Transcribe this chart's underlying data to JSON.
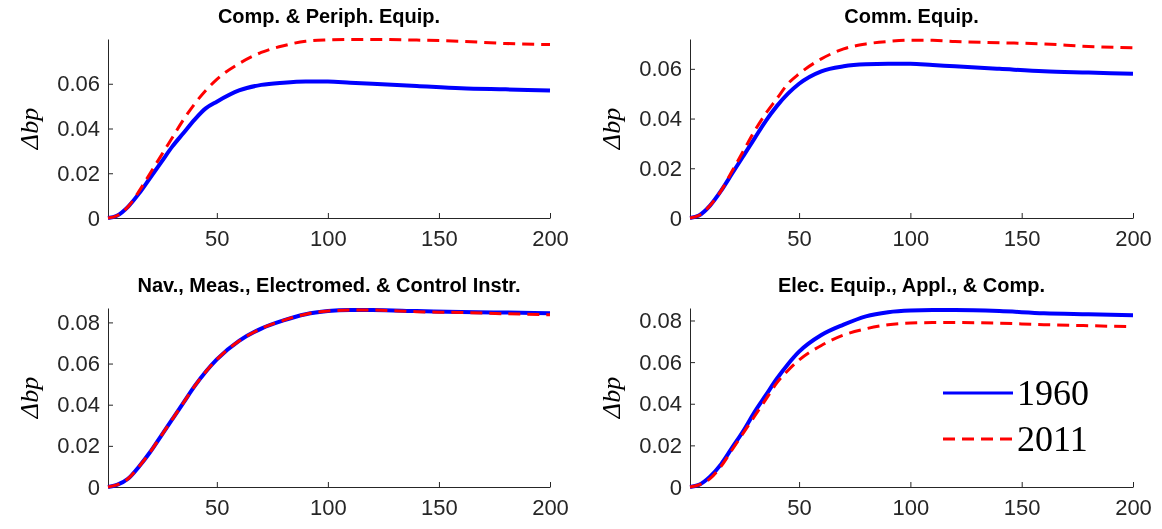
{
  "chart_data": [
    {
      "type": "line",
      "title": "Comp. & Periph. Equip.",
      "ylabel": "Δbp",
      "x": [
        1,
        5,
        10,
        15,
        20,
        25,
        30,
        35,
        40,
        45,
        50,
        60,
        70,
        80,
        90,
        100,
        110,
        120,
        140,
        160,
        180,
        200
      ],
      "xlim": [
        1,
        200
      ],
      "xticks": [
        50,
        100,
        150,
        200
      ],
      "ylim": [
        0,
        0.08
      ],
      "yticks": [
        0,
        0.02,
        0.04,
        0.06
      ],
      "legend": false,
      "series": [
        {
          "color": "#0000ff",
          "line_style": "solid",
          "values": [
            0,
            0.001,
            0.005,
            0.011,
            0.018,
            0.025,
            0.032,
            0.038,
            0.044,
            0.049,
            0.052,
            0.057,
            0.0595,
            0.0605,
            0.061,
            0.061,
            0.0605,
            0.06,
            0.059,
            0.058,
            0.0575,
            0.057
          ]
        },
        {
          "color": "#ff0000",
          "line_style": "dashed",
          "values": [
            0,
            0.001,
            0.005,
            0.012,
            0.02,
            0.028,
            0.036,
            0.044,
            0.051,
            0.057,
            0.062,
            0.069,
            0.074,
            0.077,
            0.079,
            0.0796,
            0.0798,
            0.0798,
            0.0795,
            0.079,
            0.078,
            0.0775
          ]
        }
      ]
    },
    {
      "type": "line",
      "title": "Comm. Equip.",
      "ylabel": "Δbp",
      "x": [
        1,
        5,
        10,
        15,
        20,
        25,
        30,
        35,
        40,
        45,
        50,
        60,
        70,
        80,
        90,
        100,
        110,
        120,
        140,
        160,
        180,
        200
      ],
      "xlim": [
        1,
        200
      ],
      "xticks": [
        50,
        100,
        150,
        200
      ],
      "ylim": [
        0,
        0.072
      ],
      "yticks": [
        0,
        0.02,
        0.04,
        0.06
      ],
      "legend": false,
      "series": [
        {
          "color": "#0000ff",
          "line_style": "solid",
          "values": [
            0,
            0.001,
            0.005,
            0.011,
            0.018,
            0.025,
            0.032,
            0.039,
            0.045,
            0.05,
            0.054,
            0.059,
            0.061,
            0.0618,
            0.062,
            0.062,
            0.0615,
            0.061,
            0.06,
            0.059,
            0.0585,
            0.058
          ]
        },
        {
          "color": "#ff0000",
          "line_style": "dashed",
          "values": [
            0,
            0.001,
            0.005,
            0.011,
            0.019,
            0.027,
            0.035,
            0.042,
            0.048,
            0.054,
            0.058,
            0.064,
            0.068,
            0.07,
            0.071,
            0.0715,
            0.0715,
            0.071,
            0.0705,
            0.07,
            0.069,
            0.0685
          ]
        }
      ]
    },
    {
      "type": "line",
      "title": "Nav., Meas., Electromed. & Control Instr.",
      "ylabel": "Δbp",
      "x": [
        1,
        5,
        10,
        15,
        20,
        25,
        30,
        35,
        40,
        45,
        50,
        60,
        70,
        80,
        90,
        100,
        110,
        120,
        140,
        160,
        180,
        200
      ],
      "xlim": [
        1,
        200
      ],
      "xticks": [
        50,
        100,
        150,
        200
      ],
      "ylim": [
        0,
        0.087
      ],
      "yticks": [
        0,
        0.02,
        0.04,
        0.06,
        0.08
      ],
      "legend": false,
      "series": [
        {
          "color": "#0000ff",
          "line_style": "solid",
          "values": [
            0,
            0.001,
            0.004,
            0.01,
            0.017,
            0.025,
            0.033,
            0.041,
            0.049,
            0.056,
            0.062,
            0.071,
            0.077,
            0.081,
            0.084,
            0.0855,
            0.086,
            0.086,
            0.0855,
            0.085,
            0.0848,
            0.0845
          ]
        },
        {
          "color": "#ff0000",
          "line_style": "dashed",
          "values": [
            0,
            0.001,
            0.004,
            0.01,
            0.017,
            0.025,
            0.033,
            0.041,
            0.049,
            0.056,
            0.062,
            0.071,
            0.077,
            0.081,
            0.084,
            0.0855,
            0.086,
            0.086,
            0.0852,
            0.0848,
            0.0842,
            0.0837
          ]
        }
      ]
    },
    {
      "type": "line",
      "title": "Elec. Equip., Appl., & Comp.",
      "ylabel": "Δbp",
      "x": [
        1,
        5,
        10,
        15,
        20,
        25,
        30,
        35,
        40,
        45,
        50,
        60,
        70,
        80,
        90,
        100,
        110,
        120,
        140,
        160,
        180,
        200
      ],
      "xlim": [
        1,
        200
      ],
      "xticks": [
        50,
        100,
        150,
        200
      ],
      "ylim": [
        0,
        0.086
      ],
      "yticks": [
        0,
        0.02,
        0.04,
        0.06,
        0.08
      ],
      "legend": "bottom right",
      "series": [
        {
          "name": "1960",
          "color": "#0000ff",
          "line_style": "solid",
          "values": [
            0,
            0.001,
            0.005,
            0.011,
            0.019,
            0.027,
            0.036,
            0.044,
            0.052,
            0.059,
            0.065,
            0.073,
            0.078,
            0.082,
            0.084,
            0.0848,
            0.085,
            0.085,
            0.0845,
            0.0835,
            0.083,
            0.0825
          ]
        },
        {
          "name": "2011",
          "color": "#ff0000",
          "line_style": "dashed",
          "values": [
            0,
            0.001,
            0.004,
            0.01,
            0.018,
            0.026,
            0.034,
            0.042,
            0.05,
            0.056,
            0.061,
            0.068,
            0.073,
            0.076,
            0.078,
            0.0788,
            0.079,
            0.079,
            0.0787,
            0.078,
            0.0775,
            0.077
          ]
        }
      ]
    }
  ]
}
